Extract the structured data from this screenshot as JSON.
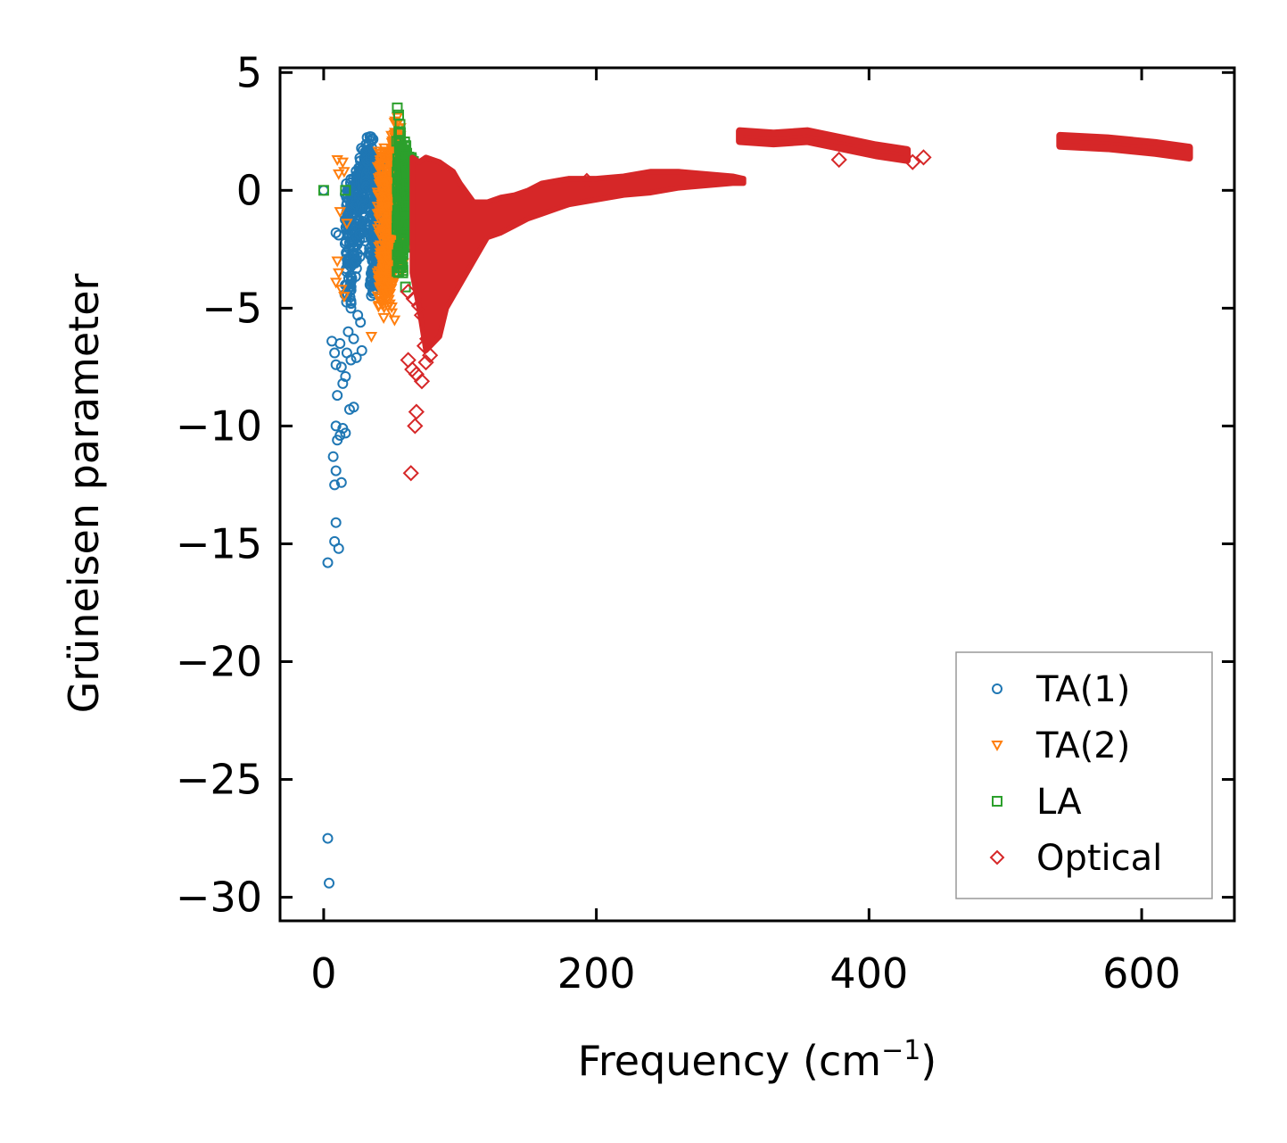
{
  "chart_data": {
    "type": "scatter",
    "xlabel": "Frequency (cm",
    "xlabel_sup": "−1",
    "xlabel_end": ")",
    "ylabel": "Grüneisen parameter",
    "xlim": [
      -32,
      668
    ],
    "ylim": [
      -31,
      5.2
    ],
    "x_ticks": [
      0,
      200,
      400,
      600
    ],
    "x_tick_labels": [
      "0",
      "200",
      "400",
      "600"
    ],
    "y_ticks": [
      5,
      0,
      -5,
      -10,
      -15,
      -20,
      -25,
      -30
    ],
    "y_tick_labels": [
      "5",
      "0",
      "−5",
      "−10",
      "−15",
      "−20",
      "−25",
      "−30"
    ],
    "legend_position": "lower-right",
    "series": [
      {
        "name": "TA(1)",
        "marker": "circle",
        "color": "#1f77b4",
        "outliers": [
          [
            3,
            -27.5
          ],
          [
            4,
            -29.4
          ],
          [
            3,
            -15.8
          ],
          [
            8,
            -14.9
          ],
          [
            9,
            -14.1
          ],
          [
            11,
            -15.2
          ],
          [
            8,
            -12.5
          ],
          [
            13,
            -12.4
          ],
          [
            9,
            -11.9
          ],
          [
            7,
            -11.3
          ],
          [
            10,
            -10.6
          ],
          [
            12,
            -10.4
          ],
          [
            14,
            -10.1
          ],
          [
            9,
            -10.0
          ],
          [
            16,
            -10.3
          ],
          [
            19,
            -9.3
          ],
          [
            22,
            -9.2
          ],
          [
            10,
            -8.7
          ],
          [
            14,
            -8.2
          ],
          [
            16,
            -7.9
          ],
          [
            13,
            -7.5
          ],
          [
            9,
            -7.4
          ],
          [
            20,
            -7.2
          ],
          [
            24,
            -7.1
          ],
          [
            8,
            -6.9
          ],
          [
            17,
            -6.9
          ],
          [
            28,
            -6.8
          ],
          [
            12,
            -6.5
          ],
          [
            6,
            -6.4
          ],
          [
            22,
            -6.3
          ],
          [
            18,
            -6.0
          ],
          [
            27,
            -5.6
          ],
          [
            25,
            -5.3
          ],
          [
            20,
            -5.0
          ],
          [
            11,
            -1.9
          ],
          [
            9,
            -1.8
          ],
          [
            0,
            0.0
          ]
        ],
        "clusters": [
          [
            18,
            -4.8,
            0.3
          ],
          [
            22,
            -4.0,
            0.5
          ],
          [
            26,
            -3.0,
            1.0
          ],
          [
            28,
            -2.0,
            1.4
          ],
          [
            30,
            -1.0,
            1.8
          ],
          [
            32,
            0.0,
            2.0
          ],
          [
            34,
            1.0,
            2.3
          ],
          [
            36,
            -4.5,
            -0.5
          ],
          [
            38,
            -4.0,
            1.0
          ],
          [
            40,
            -3.0,
            1.5
          ],
          [
            42,
            -2.5,
            0.5
          ],
          [
            44,
            -4.0,
            -1.5
          ],
          [
            46,
            -3.5,
            -2.0
          ]
        ]
      },
      {
        "name": "TA(2)",
        "marker": "triangle-down",
        "color": "#ff7f0e",
        "outliers": [
          [
            10,
            1.3
          ],
          [
            11,
            0.7
          ],
          [
            12,
            -0.9
          ],
          [
            14,
            1.2
          ],
          [
            15,
            0.8
          ],
          [
            17,
            -1.4
          ],
          [
            10,
            -3.0
          ],
          [
            9,
            -3.9
          ],
          [
            11,
            -3.5
          ],
          [
            13,
            -4.2
          ],
          [
            15,
            -4.5
          ],
          [
            35,
            -6.2
          ],
          [
            44,
            -5.4
          ],
          [
            52,
            -5.5
          ],
          [
            50,
            -5.2
          ],
          [
            47,
            -4.9
          ],
          [
            54,
            3.1
          ],
          [
            56,
            2.2
          ]
        ],
        "clusters": [
          [
            42,
            -5.0,
            1.8
          ],
          [
            45,
            -4.5,
            1.5
          ],
          [
            48,
            -5.0,
            0.5
          ],
          [
            50,
            -4.0,
            2.0
          ],
          [
            52,
            -3.0,
            2.5
          ],
          [
            54,
            -1.0,
            3.0
          ],
          [
            56,
            -3.5,
            2.0
          ],
          [
            58,
            -2.5,
            1.5
          ]
        ]
      },
      {
        "name": "LA",
        "marker": "square",
        "color": "#2ca02c",
        "outliers": [
          [
            0,
            0.0
          ],
          [
            16,
            0.0
          ],
          [
            54,
            3.5
          ],
          [
            55,
            3.2
          ],
          [
            56,
            2.8
          ],
          [
            60,
            -4.1
          ],
          [
            58,
            -3.5
          ]
        ],
        "clusters": [
          [
            56,
            -3.5,
            2.5
          ],
          [
            58,
            -3.0,
            2.2
          ],
          [
            60,
            -2.5,
            1.8
          ],
          [
            62,
            -1.5,
            1.5
          ],
          [
            64,
            -0.5,
            1.4
          ],
          [
            66,
            0.0,
            1.2
          ]
        ]
      },
      {
        "name": "Optical",
        "marker": "diamond",
        "color": "#d62728",
        "outliers": [
          [
            64,
            -12.0
          ],
          [
            67,
            -10.0
          ],
          [
            68,
            -9.4
          ],
          [
            62,
            -7.2
          ],
          [
            65,
            -7.6
          ],
          [
            68,
            -7.8
          ],
          [
            72,
            -8.1
          ],
          [
            75,
            -7.3
          ],
          [
            78,
            -7.0
          ],
          [
            62,
            -4.3
          ],
          [
            66,
            -4.6
          ],
          [
            70,
            -4.9
          ],
          [
            72,
            -5.3
          ],
          [
            74,
            -6.6
          ],
          [
            76,
            -6.3
          ],
          [
            193,
            0.4
          ],
          [
            378,
            1.3
          ],
          [
            432,
            1.2
          ],
          [
            440,
            1.4
          ]
        ],
        "band": [
          [
            65,
            -3.5,
            1.4
          ],
          [
            70,
            -5.0,
            1.2
          ],
          [
            75,
            -6.8,
            1.4
          ],
          [
            80,
            -6.5,
            1.3
          ],
          [
            85,
            -6.2,
            1.2
          ],
          [
            90,
            -5.0,
            1.0
          ],
          [
            95,
            -4.5,
            0.8
          ],
          [
            100,
            -4.0,
            0.3
          ],
          [
            110,
            -3.0,
            -0.5
          ],
          [
            120,
            -2.0,
            -0.5
          ],
          [
            130,
            -1.8,
            -0.3
          ],
          [
            140,
            -1.5,
            -0.2
          ],
          [
            150,
            -1.2,
            0.0
          ],
          [
            160,
            -1.0,
            0.3
          ],
          [
            170,
            -0.8,
            0.4
          ],
          [
            180,
            -0.6,
            0.5
          ],
          [
            200,
            -0.4,
            0.5
          ],
          [
            220,
            -0.2,
            0.6
          ],
          [
            240,
            -0.1,
            0.8
          ],
          [
            260,
            0.1,
            0.8
          ],
          [
            280,
            0.2,
            0.7
          ],
          [
            300,
            0.3,
            0.6
          ],
          [
            308,
            0.3,
            0.5
          ]
        ],
        "ribbons": [
          [
            [
              305,
              2.3
            ],
            [
              330,
              2.2
            ],
            [
              355,
              2.3
            ],
            [
              380,
              2.0
            ],
            [
              405,
              1.7
            ],
            [
              428,
              1.5
            ]
          ],
          [
            [
              540,
              2.1
            ],
            [
              575,
              2.0
            ],
            [
              610,
              1.8
            ],
            [
              635,
              1.6
            ]
          ]
        ],
        "ribbon_width": 0.45
      }
    ]
  }
}
